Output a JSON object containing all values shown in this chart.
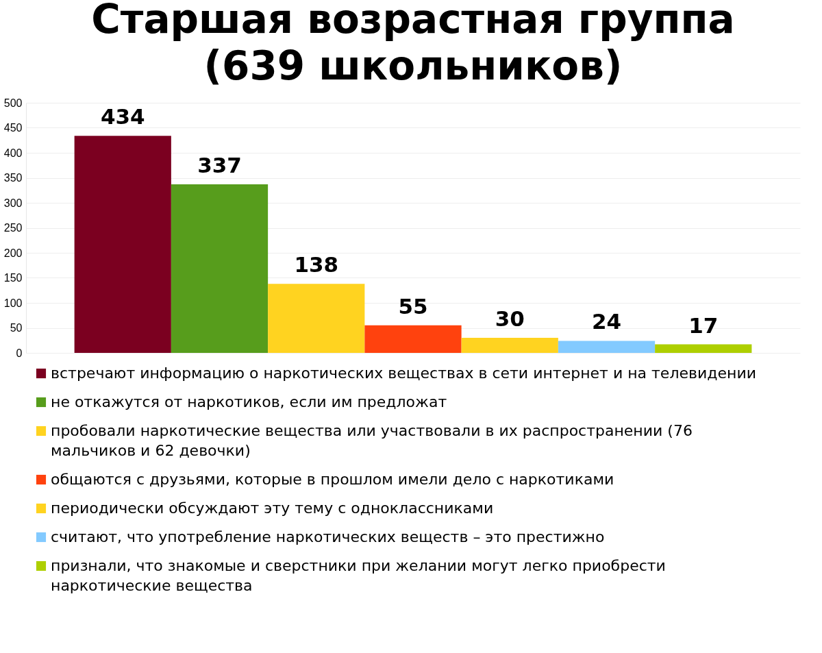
{
  "chart_data": {
    "type": "bar",
    "title": "Старшая возрастная группа (639 школьников)",
    "categories": [
      null,
      null,
      null,
      null,
      null,
      null,
      null
    ],
    "series": [
      {
        "name": "встречают информацию о наркотических веществах в сети интернет и на телевидении",
        "color": "#7b0020",
        "values": [
          434,
          null,
          null,
          null,
          null,
          null,
          null
        ]
      },
      {
        "name": "не откажутся от наркотиков, если им предложат",
        "color": "#579d1c",
        "values": [
          null,
          337,
          null,
          null,
          null,
          null,
          null
        ]
      },
      {
        "name": "пробовали наркотические вещества или участвовали в их распространении (76 мальчиков и 62 девочки)",
        "color": "#ffd320",
        "values": [
          null,
          null,
          138,
          null,
          null,
          null,
          null
        ]
      },
      {
        "name": "общаются с друзьями, которые в прошлом имели дело с наркотиками",
        "color": "#ff420e",
        "values": [
          null,
          null,
          null,
          55,
          null,
          null,
          null
        ]
      },
      {
        "name": "периодически обсуждают эту тему с одноклассниками",
        "color": "#ffd320",
        "values": [
          null,
          null,
          null,
          null,
          30,
          null,
          null
        ]
      },
      {
        "name": "считают, что употребление наркотических веществ – это престижно",
        "color": "#83caff",
        "values": [
          null,
          null,
          null,
          null,
          null,
          24,
          null
        ]
      },
      {
        "name": "признали, что знакомые и сверстники при желании могут легко приобрести наркотические вещества",
        "color": "#aecf00",
        "values": [
          null,
          null,
          null,
          null,
          null,
          null,
          17
        ]
      }
    ],
    "ylim": [
      0,
      500
    ],
    "yticks": [
      0,
      50,
      100,
      150,
      200,
      250,
      300,
      350,
      400,
      450,
      500
    ],
    "grid": "y",
    "legend": "bottom",
    "data_labels": true
  }
}
